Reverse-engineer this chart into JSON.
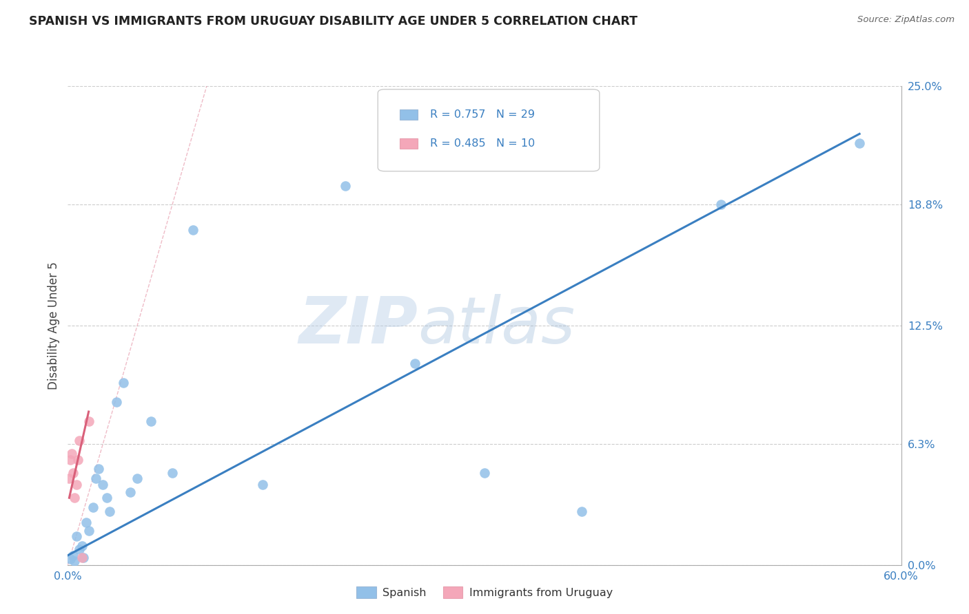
{
  "title": "SPANISH VS IMMIGRANTS FROM URUGUAY DISABILITY AGE UNDER 5 CORRELATION CHART",
  "source": "Source: ZipAtlas.com",
  "ylabel": "Disability Age Under 5",
  "x_label_bottom_left": "0.0%",
  "x_label_bottom_right": "60.0%",
  "y_tick_values": [
    0.0,
    6.3,
    12.5,
    18.8,
    25.0
  ],
  "xlim": [
    0.0,
    60.0
  ],
  "ylim": [
    0.0,
    25.0
  ],
  "legend_label1": "Spanish",
  "legend_label2": "Immigrants from Uruguay",
  "color_blue": "#92c0e8",
  "color_pink": "#f4a7b9",
  "color_blue_dark": "#3a7fc1",
  "color_pink_dark": "#d9607a",
  "color_diag": "#f4b8c0",
  "watermark_zip": "ZIP",
  "watermark_atlas": "atlas",
  "blue_scatter_x": [
    0.2,
    0.4,
    0.5,
    0.6,
    0.8,
    1.0,
    1.1,
    1.3,
    1.5,
    1.8,
    2.0,
    2.2,
    2.5,
    2.8,
    3.0,
    3.5,
    4.0,
    4.5,
    5.0,
    6.0,
    7.5,
    9.0,
    14.0,
    20.0,
    25.0,
    30.0,
    37.0,
    47.0,
    57.0
  ],
  "blue_scatter_y": [
    0.3,
    0.5,
    0.2,
    1.5,
    0.8,
    1.0,
    0.4,
    2.2,
    1.8,
    3.0,
    4.5,
    5.0,
    4.2,
    3.5,
    2.8,
    8.5,
    9.5,
    3.8,
    4.5,
    7.5,
    4.8,
    17.5,
    4.2,
    19.8,
    10.5,
    4.8,
    2.8,
    18.8,
    22.0
  ],
  "pink_scatter_x": [
    0.1,
    0.2,
    0.3,
    0.4,
    0.5,
    0.6,
    0.7,
    0.8,
    1.0,
    1.5
  ],
  "pink_scatter_y": [
    4.5,
    5.5,
    5.8,
    4.8,
    3.5,
    4.2,
    5.5,
    6.5,
    0.4,
    7.5
  ],
  "blue_line_x": [
    0.0,
    57.0
  ],
  "blue_line_y": [
    0.5,
    22.5
  ],
  "pink_line_x": [
    0.1,
    1.5
  ],
  "pink_line_y": [
    3.5,
    8.0
  ],
  "diag_line_x": [
    0.0,
    10.0
  ],
  "diag_line_y": [
    0.0,
    25.0
  ]
}
